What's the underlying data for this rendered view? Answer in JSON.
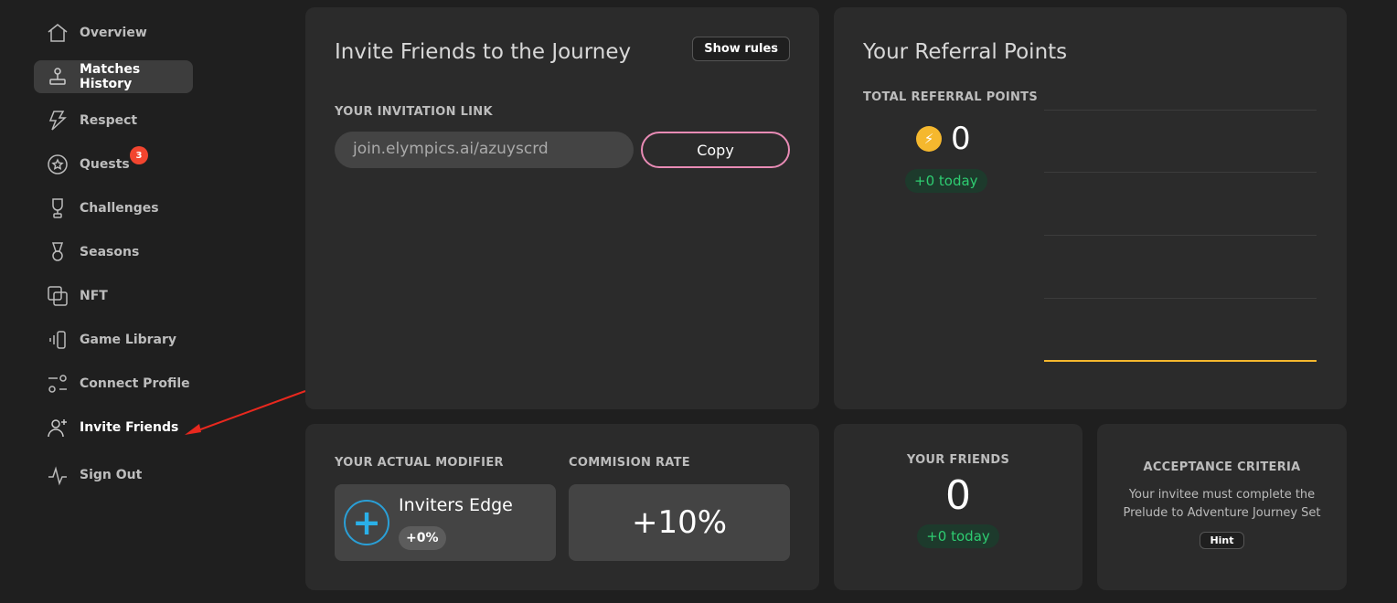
{
  "sidebar": {
    "items": [
      {
        "label": "Overview",
        "icon": "home-icon"
      },
      {
        "label": "Matches History",
        "icon": "joystick-icon",
        "active": true
      },
      {
        "label": "Respect",
        "icon": "lightning-icon"
      },
      {
        "label": "Quests",
        "icon": "star-circle-icon",
        "badge": "3"
      },
      {
        "label": "Challenges",
        "icon": "trophy-icon"
      },
      {
        "label": "Seasons",
        "icon": "medal-icon"
      },
      {
        "label": "NFT",
        "icon": "copy-icon"
      },
      {
        "label": "Game Library",
        "icon": "phone-vibrate-icon"
      },
      {
        "label": "Connect Profile",
        "icon": "sliders-icon"
      },
      {
        "label": "Invite Friends",
        "icon": "user-plus-icon"
      },
      {
        "label": "Sign Out",
        "icon": "pulse-icon"
      }
    ]
  },
  "invite": {
    "title": "Invite Friends to the Journey",
    "show_rules": "Show rules",
    "link_label": "YOUR INVITATION LINK",
    "link_value": "join.elympics.ai/azuyscrd",
    "copy": "Copy"
  },
  "referral": {
    "title": "Your Referral Points",
    "total_label": "TOTAL REFERRAL POINTS",
    "total": "0",
    "today": "+0 today",
    "accent": "#f5b82e"
  },
  "modifier": {
    "label": "YOUR ACTUAL MODIFIER",
    "name": "Inviters Edge",
    "value": "+0%",
    "commission_label": "COMMISION RATE",
    "commission": "+10%"
  },
  "friends": {
    "label": "YOUR FRIENDS",
    "count": "0",
    "today": "+0 today"
  },
  "criteria": {
    "label": "ACCEPTANCE CRITERIA",
    "text": "Your invitee must complete the Prelude to Adventure Journey Set",
    "hint": "Hint"
  }
}
